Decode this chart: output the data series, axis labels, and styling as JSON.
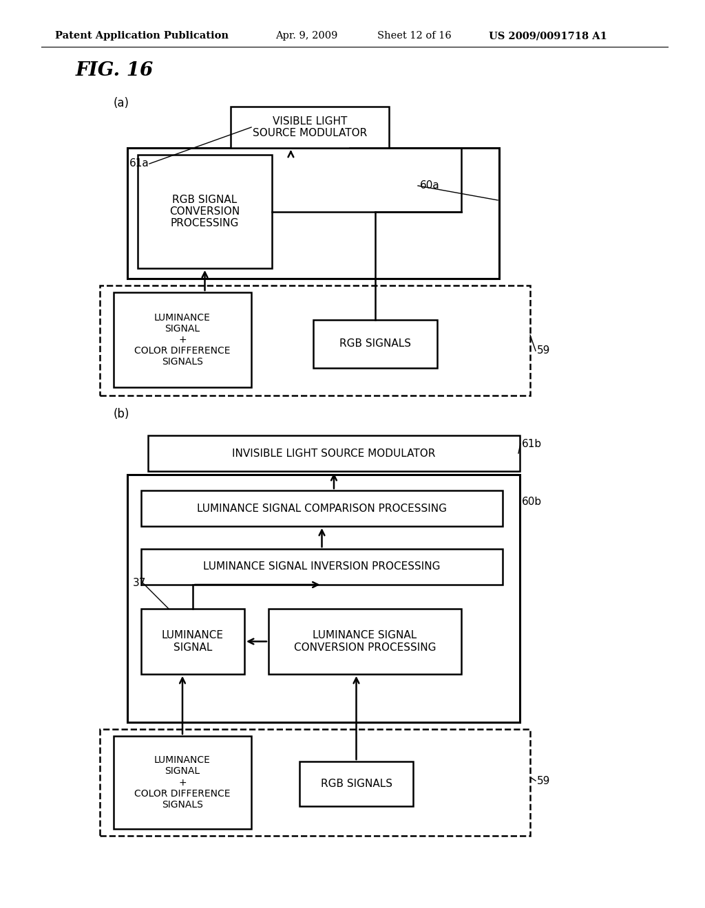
{
  "bg_color": "#ffffff",
  "header_text": "Patent Application Publication",
  "header_date": "Apr. 9, 2009",
  "header_sheet": "Sheet 12 of 16",
  "header_patent": "US 2009/0091718 A1",
  "fig_label": "FIG. 16"
}
